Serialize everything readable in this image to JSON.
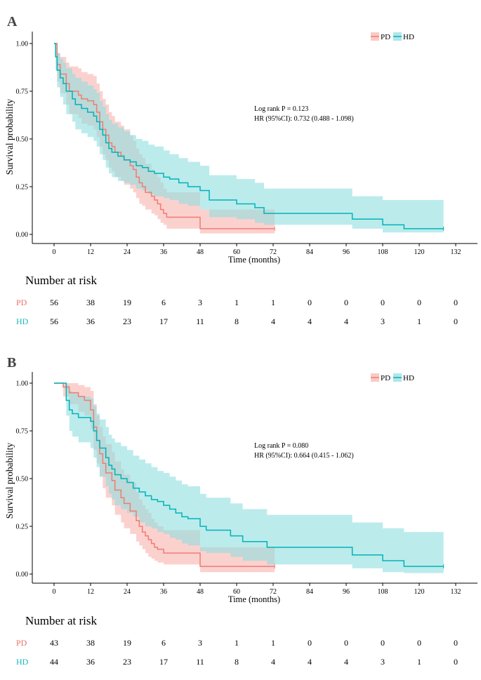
{
  "colors": {
    "PD": "#f07c73",
    "HD": "#00b3b8",
    "PD_fill": "#f9b3ad",
    "HD_fill": "#8fdde0"
  },
  "x_ticks": [
    0,
    12,
    24,
    36,
    48,
    60,
    72,
    84,
    96,
    108,
    120,
    132
  ],
  "y_ticks": [
    0.0,
    0.25,
    0.5,
    0.75,
    1.0
  ],
  "chart_data": [
    {
      "type": "line",
      "panel": "A",
      "xlabel": "Time (months)",
      "ylabel": "Survival probability",
      "xlim": [
        0,
        132
      ],
      "ylim": [
        0,
        1
      ],
      "legend": [
        "PD",
        "HD"
      ],
      "annotation": [
        "Log rank P = 0.123",
        "HR (95%CI): 0.732 (0.488 - 1.098)"
      ],
      "series": [
        {
          "name": "PD",
          "x": [
            0,
            1,
            2,
            4,
            5,
            8,
            9,
            11,
            13,
            14,
            15,
            16,
            17,
            18,
            19,
            20,
            22,
            23,
            25,
            26,
            27,
            28,
            29,
            30,
            32,
            33,
            34,
            35,
            36,
            37,
            38,
            40,
            42,
            48,
            72.5
          ],
          "y": [
            1.0,
            0.89,
            0.84,
            0.79,
            0.75,
            0.73,
            0.71,
            0.7,
            0.68,
            0.64,
            0.59,
            0.55,
            0.52,
            0.48,
            0.46,
            0.43,
            0.41,
            0.39,
            0.36,
            0.34,
            0.3,
            0.27,
            0.25,
            0.22,
            0.2,
            0.18,
            0.16,
            0.13,
            0.11,
            0.09,
            0.09,
            0.09,
            0.09,
            0.03,
            0.03
          ],
          "upper": [
            1.0,
            0.95,
            0.93,
            0.9,
            0.88,
            0.87,
            0.85,
            0.84,
            0.83,
            0.79,
            0.75,
            0.71,
            0.68,
            0.64,
            0.62,
            0.59,
            0.57,
            0.55,
            0.52,
            0.49,
            0.45,
            0.42,
            0.4,
            0.37,
            0.34,
            0.32,
            0.3,
            0.27,
            0.24,
            0.22,
            0.22,
            0.22,
            0.22,
            0.13,
            0.13
          ],
          "lower": [
            1.0,
            0.8,
            0.74,
            0.68,
            0.63,
            0.61,
            0.58,
            0.57,
            0.55,
            0.51,
            0.46,
            0.42,
            0.39,
            0.35,
            0.33,
            0.3,
            0.28,
            0.26,
            0.24,
            0.22,
            0.19,
            0.16,
            0.15,
            0.13,
            0.11,
            0.1,
            0.08,
            0.06,
            0.05,
            0.03,
            0.03,
            0.03,
            0.03,
            0.005,
            0.005
          ]
        },
        {
          "name": "HD",
          "x": [
            0,
            0.5,
            1,
            2,
            3,
            4,
            6,
            7,
            9,
            11,
            13,
            14,
            15,
            16,
            17,
            18,
            19,
            21,
            23,
            25,
            27,
            29,
            31,
            33,
            36,
            38,
            41,
            44,
            48,
            51,
            53,
            56,
            60,
            62,
            66,
            69,
            72,
            84,
            96,
            98,
            108,
            110,
            115,
            128
          ],
          "y": [
            1.0,
            0.93,
            0.86,
            0.82,
            0.79,
            0.75,
            0.71,
            0.68,
            0.66,
            0.64,
            0.62,
            0.59,
            0.55,
            0.52,
            0.48,
            0.45,
            0.43,
            0.41,
            0.39,
            0.38,
            0.36,
            0.35,
            0.33,
            0.32,
            0.3,
            0.29,
            0.27,
            0.25,
            0.23,
            0.18,
            0.18,
            0.18,
            0.16,
            0.16,
            0.14,
            0.11,
            0.11,
            0.11,
            0.11,
            0.08,
            0.05,
            0.05,
            0.03,
            0.03
          ],
          "upper": [
            1.0,
            1.0,
            0.95,
            0.92,
            0.9,
            0.87,
            0.84,
            0.82,
            0.8,
            0.78,
            0.76,
            0.74,
            0.7,
            0.67,
            0.63,
            0.6,
            0.58,
            0.56,
            0.54,
            0.52,
            0.5,
            0.49,
            0.47,
            0.46,
            0.44,
            0.42,
            0.4,
            0.38,
            0.36,
            0.31,
            0.31,
            0.31,
            0.29,
            0.29,
            0.27,
            0.24,
            0.24,
            0.24,
            0.24,
            0.2,
            0.18,
            0.18,
            0.18,
            0.18
          ],
          "lower": [
            1.0,
            0.86,
            0.77,
            0.72,
            0.68,
            0.63,
            0.59,
            0.55,
            0.53,
            0.51,
            0.49,
            0.46,
            0.42,
            0.39,
            0.35,
            0.32,
            0.3,
            0.28,
            0.27,
            0.26,
            0.24,
            0.23,
            0.21,
            0.2,
            0.19,
            0.18,
            0.16,
            0.15,
            0.13,
            0.09,
            0.09,
            0.09,
            0.08,
            0.08,
            0.06,
            0.05,
            0.05,
            0.05,
            0.05,
            0.03,
            0.01,
            0.01,
            0.01,
            0.01
          ]
        }
      ]
    },
    {
      "type": "line",
      "panel": "B",
      "xlabel": "Time (months)",
      "ylabel": "Survival probability",
      "xlim": [
        0,
        132
      ],
      "ylim": [
        0,
        1
      ],
      "legend": [
        "PD",
        "HD"
      ],
      "annotation": [
        "Log rank P = 0.080",
        "HR (95%CI): 0.664 (0.415 - 1.062)"
      ],
      "series": [
        {
          "name": "PD",
          "x": [
            0,
            3,
            5,
            8,
            10,
            12,
            13,
            14,
            15,
            16,
            17,
            19,
            20,
            22,
            23,
            25,
            27,
            28,
            29,
            30,
            31,
            32,
            33,
            34,
            36,
            48,
            72.5
          ],
          "y": [
            1.0,
            0.98,
            0.95,
            0.93,
            0.91,
            0.86,
            0.77,
            0.7,
            0.63,
            0.58,
            0.53,
            0.49,
            0.44,
            0.4,
            0.37,
            0.33,
            0.28,
            0.25,
            0.22,
            0.2,
            0.18,
            0.16,
            0.14,
            0.13,
            0.11,
            0.04,
            0.04
          ],
          "upper": [
            1.0,
            1.0,
            1.0,
            0.99,
            0.98,
            0.96,
            0.89,
            0.83,
            0.77,
            0.72,
            0.68,
            0.64,
            0.59,
            0.55,
            0.52,
            0.48,
            0.43,
            0.39,
            0.36,
            0.34,
            0.32,
            0.29,
            0.27,
            0.25,
            0.23,
            0.14,
            0.14
          ],
          "lower": [
            1.0,
            0.93,
            0.89,
            0.85,
            0.83,
            0.76,
            0.65,
            0.58,
            0.51,
            0.45,
            0.4,
            0.36,
            0.31,
            0.27,
            0.24,
            0.21,
            0.17,
            0.15,
            0.13,
            0.11,
            0.09,
            0.08,
            0.07,
            0.06,
            0.05,
            0.01,
            0.01
          ]
        },
        {
          "name": "HD",
          "x": [
            0,
            4,
            5,
            6,
            8,
            12,
            13,
            14,
            15,
            17,
            18,
            19,
            20,
            22,
            24,
            26,
            28,
            30,
            32,
            34,
            36,
            38,
            40,
            42,
            44,
            48,
            50,
            54,
            58,
            60,
            62,
            66,
            70,
            72,
            84,
            96,
            98,
            108,
            110,
            115,
            128
          ],
          "y": [
            1.0,
            0.91,
            0.86,
            0.84,
            0.82,
            0.8,
            0.75,
            0.7,
            0.66,
            0.61,
            0.57,
            0.55,
            0.52,
            0.5,
            0.48,
            0.45,
            0.43,
            0.41,
            0.39,
            0.38,
            0.36,
            0.34,
            0.32,
            0.3,
            0.29,
            0.25,
            0.23,
            0.23,
            0.2,
            0.2,
            0.17,
            0.17,
            0.14,
            0.14,
            0.14,
            0.14,
            0.1,
            0.07,
            0.07,
            0.04,
            0.04
          ],
          "upper": [
            1.0,
            0.99,
            0.96,
            0.95,
            0.93,
            0.92,
            0.88,
            0.84,
            0.81,
            0.77,
            0.73,
            0.71,
            0.69,
            0.67,
            0.65,
            0.62,
            0.6,
            0.58,
            0.56,
            0.54,
            0.53,
            0.51,
            0.49,
            0.47,
            0.46,
            0.42,
            0.4,
            0.4,
            0.37,
            0.37,
            0.34,
            0.34,
            0.31,
            0.31,
            0.31,
            0.31,
            0.27,
            0.24,
            0.24,
            0.22,
            0.22
          ],
          "lower": [
            1.0,
            0.83,
            0.75,
            0.72,
            0.69,
            0.66,
            0.61,
            0.56,
            0.51,
            0.46,
            0.42,
            0.39,
            0.36,
            0.34,
            0.32,
            0.3,
            0.27,
            0.25,
            0.24,
            0.22,
            0.21,
            0.19,
            0.18,
            0.16,
            0.15,
            0.12,
            0.11,
            0.11,
            0.09,
            0.09,
            0.07,
            0.07,
            0.05,
            0.05,
            0.05,
            0.05,
            0.03,
            0.01,
            0.01,
            0.005,
            0.005
          ]
        }
      ]
    }
  ],
  "panel_a": {
    "letter": "A",
    "risk_title": "Number at risk",
    "risk_pd_label": "PD",
    "risk_hd_label": "HD",
    "risk_pd": [
      56,
      38,
      19,
      6,
      3,
      1,
      1,
      0,
      0,
      0,
      0,
      0
    ],
    "risk_hd": [
      56,
      36,
      23,
      17,
      11,
      8,
      4,
      4,
      4,
      3,
      1,
      0
    ]
  },
  "panel_b": {
    "letter": "B",
    "risk_title": "Number at risk",
    "risk_pd_label": "PD",
    "risk_hd_label": "HD",
    "risk_pd": [
      43,
      38,
      19,
      6,
      3,
      1,
      1,
      0,
      0,
      0,
      0,
      0
    ],
    "risk_hd": [
      44,
      36,
      23,
      17,
      11,
      8,
      4,
      4,
      4,
      3,
      1,
      0
    ]
  }
}
